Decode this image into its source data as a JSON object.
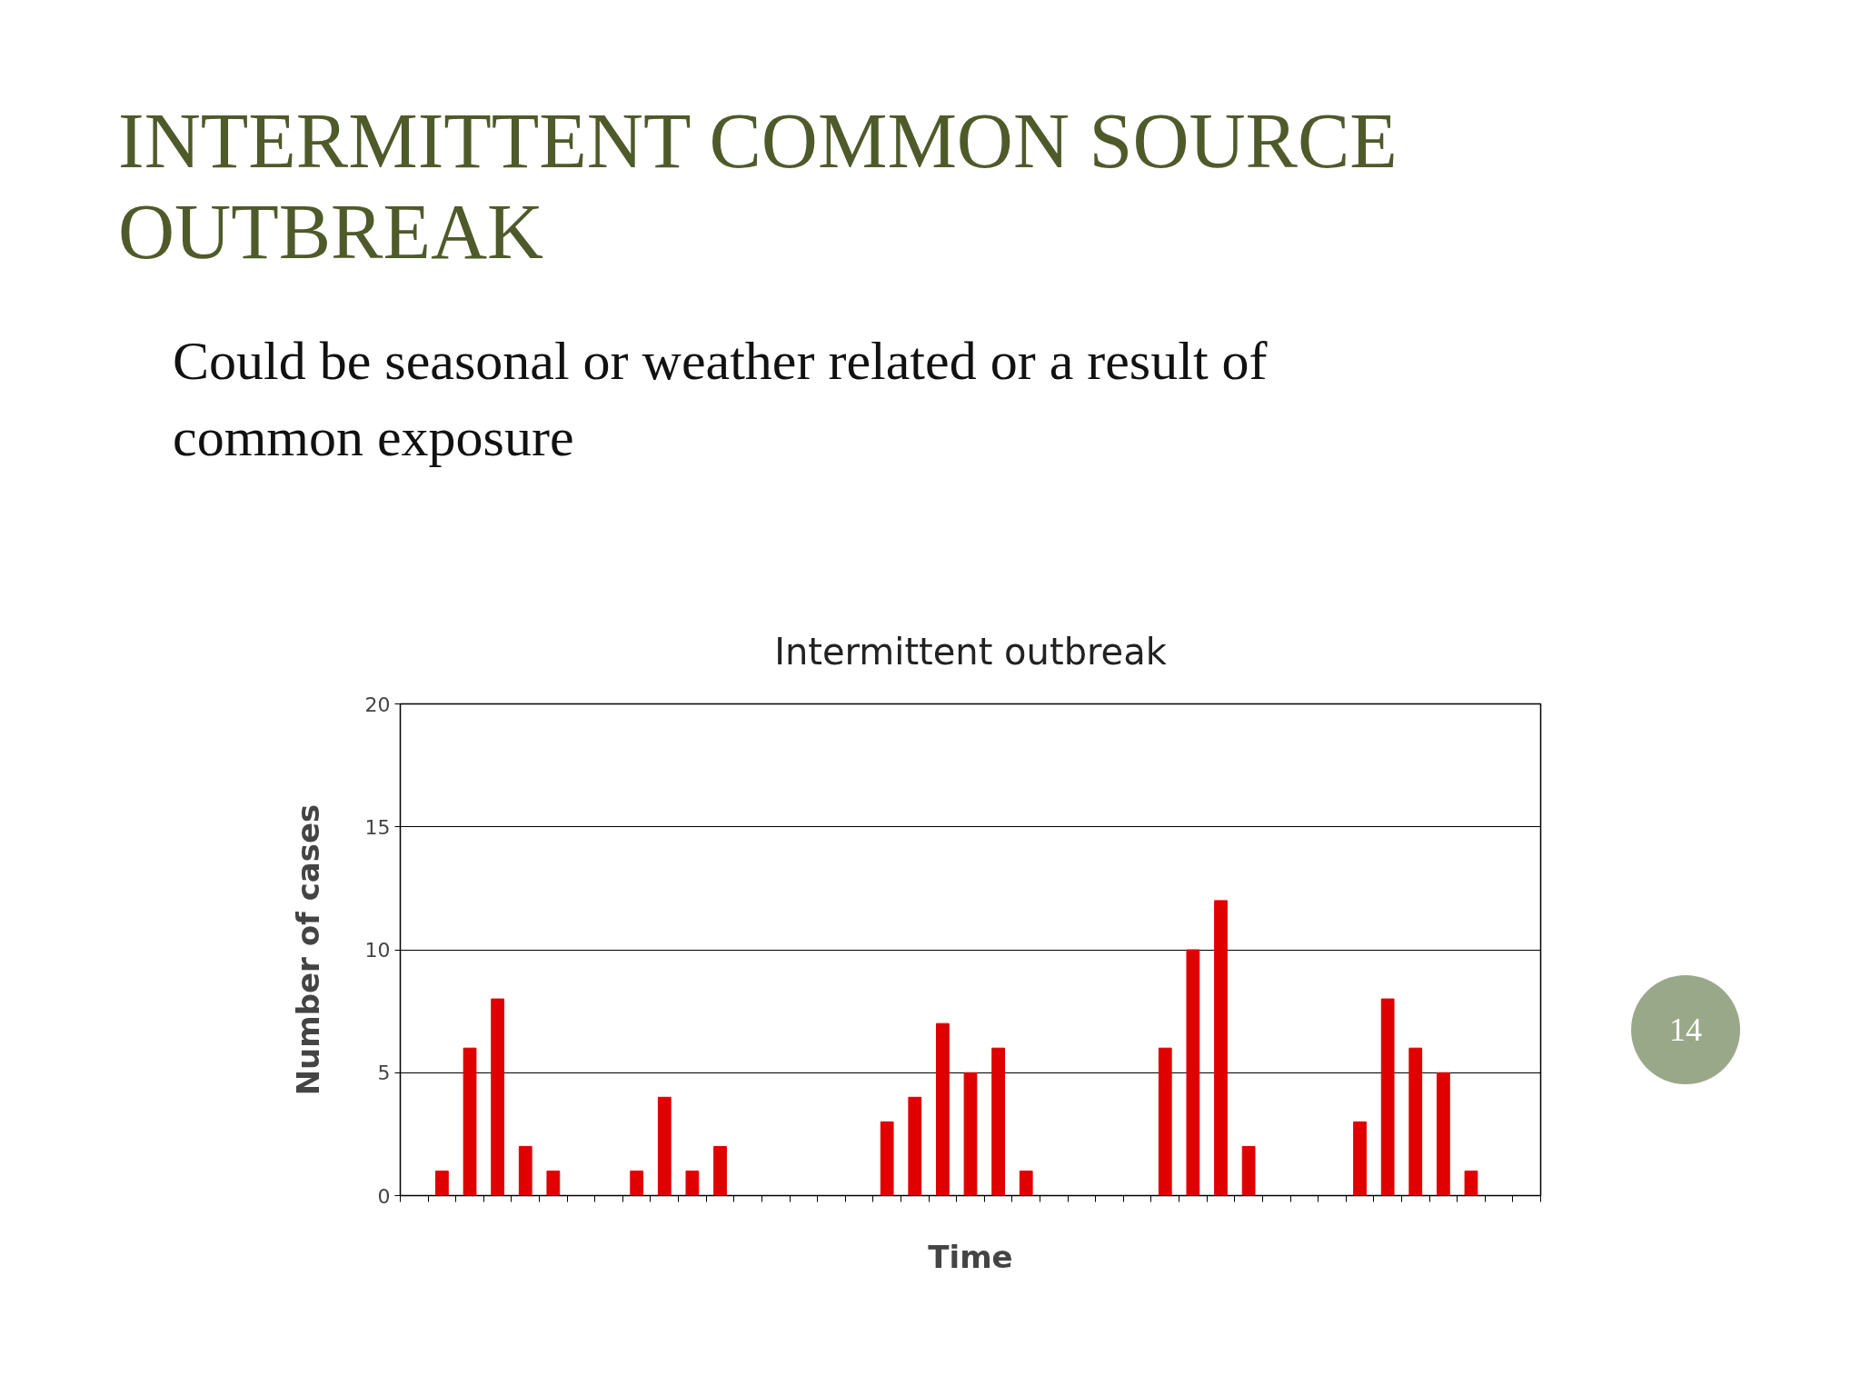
{
  "chart_data": {
    "type": "bar",
    "title": "Intermittent outbreak",
    "xlabel": "Time",
    "ylabel": "Number of cases",
    "annotations": [
      "INTERMITTENT COMMON SOURCE OUTBREAK",
      "Could be seasonal or weather related or a result of common exposure",
      "14"
    ],
    "categories": [
      null,
      null,
      null,
      null,
      null,
      null,
      null,
      null,
      null,
      null,
      null,
      null,
      null,
      null,
      null,
      null,
      null,
      null,
      null,
      null,
      null,
      null,
      null,
      null,
      null,
      null,
      null,
      null,
      null,
      null,
      null,
      null,
      null,
      null,
      null,
      null,
      null,
      null,
      null,
      null,
      null
    ],
    "values": [
      0,
      1,
      6,
      8,
      2,
      1,
      0,
      0,
      1,
      4,
      1,
      2,
      0,
      0,
      0,
      0,
      0,
      3,
      4,
      7,
      5,
      6,
      1,
      0,
      0,
      0,
      0,
      6,
      10,
      12,
      2,
      0,
      0,
      0,
      3,
      8,
      6,
      5,
      1,
      0,
      0
    ],
    "color": "#e00000",
    "ylim": [
      0,
      20
    ],
    "yticks": [
      0,
      5,
      10,
      15,
      20
    ],
    "grid": "y"
  }
}
